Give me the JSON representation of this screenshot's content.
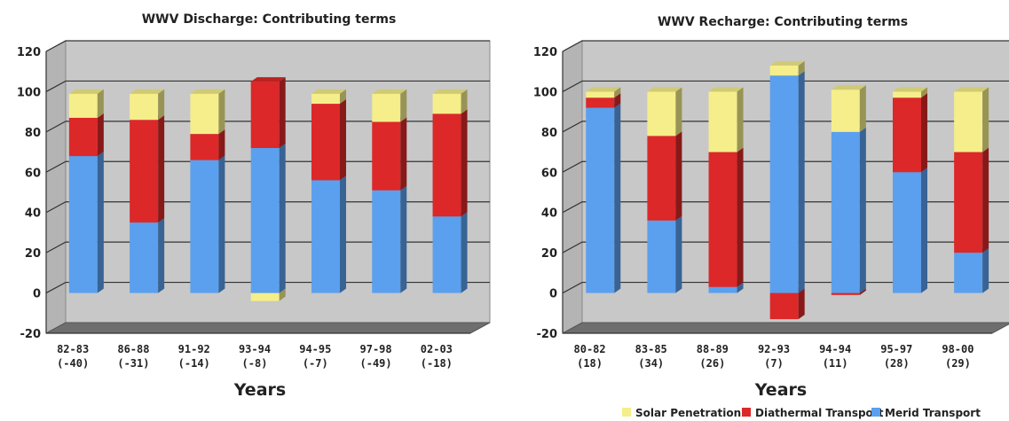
{
  "chart_data": [
    {
      "type": "bar",
      "stacked": true,
      "title": "WWV Discharge: Contributing terms",
      "xlabel": "Years",
      "ylabel": "",
      "ylim": [
        -20,
        120
      ],
      "yticks": [
        120,
        100,
        80,
        60,
        40,
        20,
        0,
        -20
      ],
      "grid": true,
      "categories": [
        [
          "82-83",
          "(-40)"
        ],
        [
          "86-88",
          "(-31)"
        ],
        [
          "91-92",
          "(-14)"
        ],
        [
          "93-94",
          "(-8)"
        ],
        [
          "94-95",
          "(-7)"
        ],
        [
          "97-98",
          "(-49)"
        ],
        [
          "02-03",
          "(-18)"
        ]
      ],
      "series": [
        {
          "name": "Merid Transport",
          "color": "#5aa0ee",
          "values": [
            68,
            35,
            66,
            72,
            56,
            51,
            38
          ]
        },
        {
          "name": "Diathermal Transport",
          "color": "#dc2828",
          "values": [
            19,
            51,
            13,
            33,
            38,
            34,
            51
          ]
        },
        {
          "name": "Solar Penetration",
          "color": "#f5ee8a",
          "values": [
            12,
            13,
            20,
            -4,
            5,
            14,
            10
          ]
        }
      ]
    },
    {
      "type": "bar",
      "stacked": true,
      "title": "WWV Recharge: Contributing terms",
      "xlabel": "Years",
      "ylabel": "",
      "ylim": [
        -20,
        120
      ],
      "yticks": [
        120,
        100,
        80,
        60,
        40,
        20,
        0,
        -20
      ],
      "grid": true,
      "categories": [
        [
          "80-82",
          "(18)"
        ],
        [
          "83-85",
          "(34)"
        ],
        [
          "88-89",
          "(26)"
        ],
        [
          "92-93",
          "(7)"
        ],
        [
          "94-94",
          "(11)"
        ],
        [
          "95-97",
          "(28)"
        ],
        [
          "98-00",
          "(29)"
        ]
      ],
      "series": [
        {
          "name": "Merid Transport",
          "color": "#5aa0ee",
          "values": [
            92,
            36,
            3,
            108,
            80,
            60,
            20
          ]
        },
        {
          "name": "Diathermal Transport",
          "color": "#dc2828",
          "values": [
            5,
            42,
            67,
            -13,
            -1,
            37,
            50
          ]
        },
        {
          "name": "Solar Penetration",
          "color": "#f5ee8a",
          "values": [
            3,
            22,
            30,
            5,
            21,
            3,
            30
          ]
        }
      ],
      "legend": {
        "position": "bottom-right",
        "items": [
          {
            "label": "Solar Penetration",
            "color": "#f5ee8a"
          },
          {
            "label": "Diathermal Transport",
            "color": "#dc2828"
          },
          {
            "label": "Merid Transport",
            "color": "#5aa0ee"
          }
        ]
      }
    }
  ]
}
